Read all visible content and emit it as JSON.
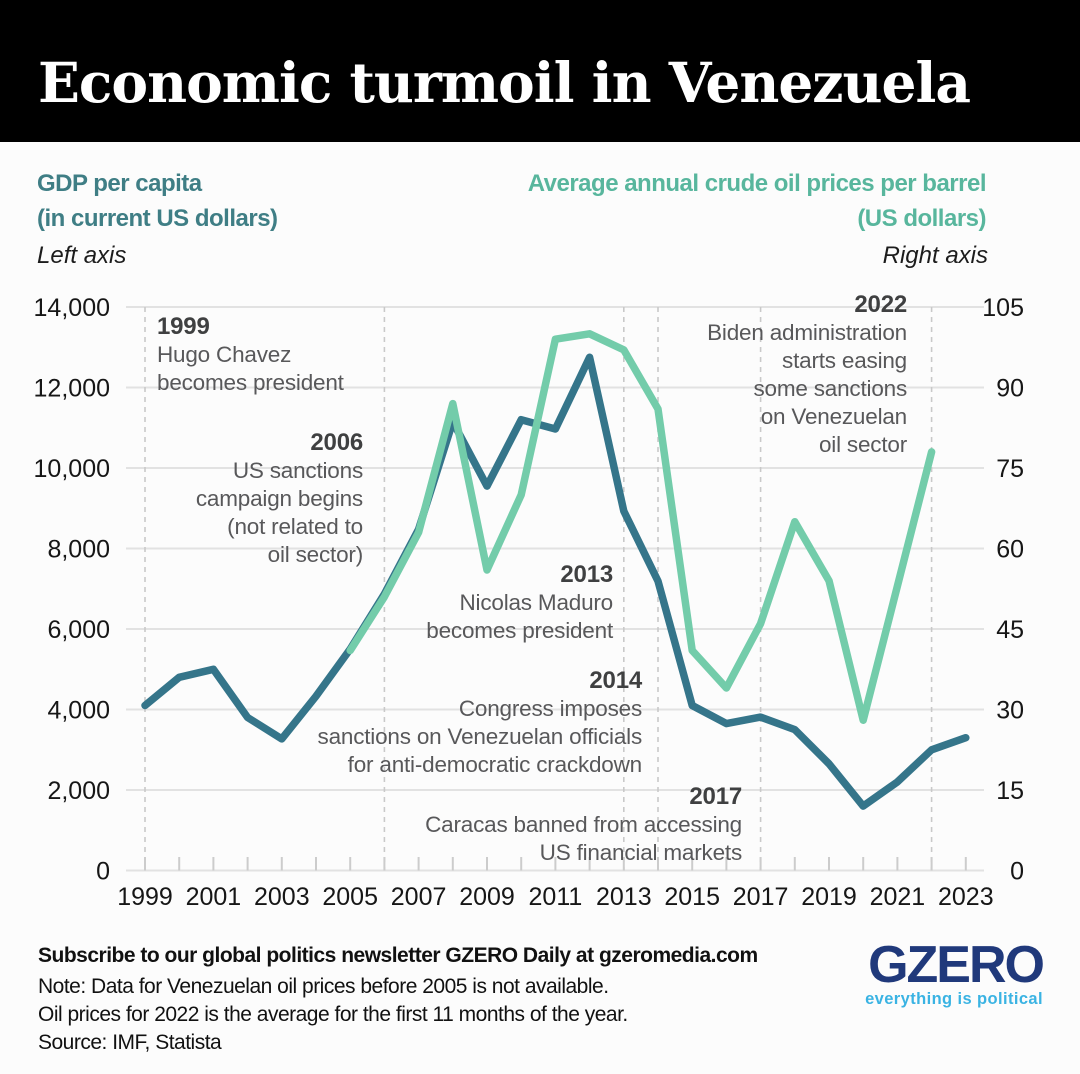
{
  "header": {
    "title": "Economic turmoil in Venezuela"
  },
  "axis_titles": {
    "left_line1": "GDP per capita",
    "left_line2": "(in current US dollars)",
    "left_note": "Left axis",
    "right_line1": "Average annual crude oil prices per barrel",
    "right_line2": "(US dollars)",
    "right_note": "Right axis"
  },
  "chart_data": {
    "type": "line",
    "grid": true,
    "legend": "none",
    "x_range": [
      1999,
      2023
    ],
    "left_axis": {
      "label": "GDP per capita (current US dollars)",
      "min": 0,
      "max": 14000,
      "ticks": [
        0,
        2000,
        4000,
        6000,
        8000,
        10000,
        12000,
        14000
      ]
    },
    "right_axis": {
      "label": "Average annual crude oil price per barrel (US dollars)",
      "min": 0,
      "max": 105,
      "ticks": [
        0,
        15,
        30,
        45,
        60,
        75,
        90,
        105
      ]
    },
    "x_axis": {
      "tick_start": 1999,
      "tick_end": 2023,
      "label_years": [
        1999,
        2001,
        2003,
        2005,
        2007,
        2009,
        2011,
        2013,
        2015,
        2017,
        2019,
        2021,
        2023
      ]
    },
    "event_lines": [
      1999,
      2006,
      2013,
      2014,
      2017,
      2022
    ],
    "series": [
      {
        "name": "GDP per capita",
        "axis": "left",
        "color": "#35758a",
        "x": [
          1999,
          2000,
          2001,
          2002,
          2003,
          2004,
          2005,
          2006,
          2007,
          2008,
          2009,
          2010,
          2011,
          2012,
          2013,
          2014,
          2015,
          2016,
          2017,
          2018,
          2019,
          2020,
          2021,
          2022,
          2023
        ],
        "values": [
          4100,
          4800,
          5000,
          3800,
          3270,
          4330,
          5500,
          6870,
          8480,
          11150,
          9550,
          11200,
          10970,
          12750,
          8930,
          7190,
          4100,
          3650,
          3810,
          3500,
          2650,
          1600,
          2200,
          3000,
          3300
        ]
      },
      {
        "name": "Average annual crude oil price per barrel",
        "axis": "right",
        "color": "#73ccaa",
        "x": [
          2005,
          2006,
          2007,
          2008,
          2009,
          2010,
          2011,
          2012,
          2013,
          2014,
          2015,
          2016,
          2017,
          2018,
          2019,
          2020,
          2021,
          2022
        ],
        "values": [
          41,
          51,
          63,
          87,
          56,
          70,
          99,
          100,
          97,
          86,
          41,
          34,
          46,
          65,
          54,
          28,
          53,
          78
        ]
      }
    ],
    "annotations": [
      {
        "year": "1999",
        "lines": [
          "Hugo Chavez",
          "becomes president"
        ]
      },
      {
        "year": "2006",
        "lines": [
          "US sanctions",
          "campaign begins",
          "(not related to",
          "oil sector)"
        ]
      },
      {
        "year": "2013",
        "lines": [
          "Nicolas Maduro",
          "becomes president"
        ]
      },
      {
        "year": "2014",
        "lines": [
          "Congress imposes",
          "sanctions on Venezuelan officials",
          "for anti-democratic crackdown"
        ]
      },
      {
        "year": "2017",
        "lines": [
          "Caracas banned from accessing",
          "US financial markets"
        ]
      },
      {
        "year": "2022",
        "lines": [
          "Biden administration",
          "starts easing",
          "some sanctions",
          "on Venezuelan",
          "oil sector"
        ]
      }
    ]
  },
  "footer": {
    "subscribe": "Subscribe to our global politics newsletter GZERO Daily at gzeromedia.com",
    "note_line1": "Note: Data for Venezuelan oil prices before 2005 is not available.",
    "note_line2": "Oil prices for 2022 is the average for the first 11 months of the year.",
    "source": "Source: IMF, Statista",
    "logo_text": "GZERO",
    "logo_tagline": "everything is political"
  },
  "colors": {
    "gdp_line": "#35758a",
    "oil_line": "#73ccaa",
    "left_title": "#3f7e85",
    "right_title": "#58b69d",
    "grid": "#e2e2e2",
    "event_line": "#c9c9c9",
    "logo_navy": "#20397b",
    "logo_cyan": "#3ab3e3"
  }
}
